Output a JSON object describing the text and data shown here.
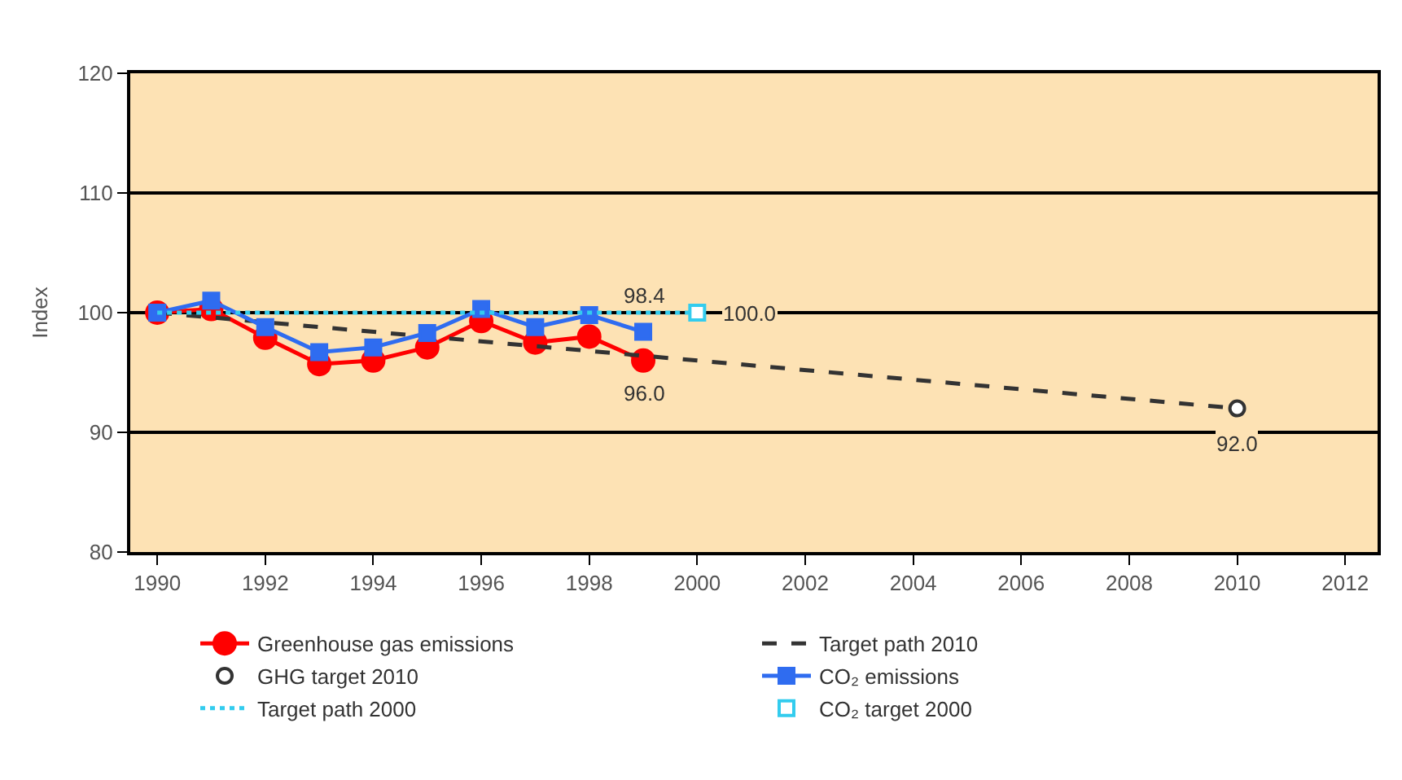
{
  "chart_data": {
    "type": "line",
    "ylabel": "Index",
    "xlim": [
      1989.5,
      2012.6
    ],
    "xticks": [
      1990,
      1992,
      1994,
      1996,
      1998,
      2000,
      2002,
      2004,
      2006,
      2008,
      2010,
      2012
    ],
    "ylim": [
      80,
      120
    ],
    "yticks": [
      80,
      90,
      100,
      110,
      120
    ],
    "grid": "y",
    "legend": "bottom",
    "series": [
      {
        "name": "Greenhouse gas emissions",
        "color": "#ff0000",
        "marker": "circle",
        "line_style": "solid",
        "x": [
          1990,
          1991,
          1992,
          1993,
          1994,
          1995,
          1996,
          1997,
          1998,
          1999
        ],
        "values": [
          100,
          100.3,
          97.9,
          95.7,
          96.0,
          97.1,
          99.3,
          97.5,
          98.0,
          96.0
        ],
        "value_labels": [
          null,
          null,
          null,
          null,
          null,
          null,
          null,
          null,
          null,
          "96.0"
        ]
      },
      {
        "name": "Target path 2010",
        "color": "#333333",
        "marker": "none",
        "line_style": "dashed",
        "x": [
          1990,
          2010
        ],
        "values": [
          100,
          92.0
        ]
      },
      {
        "name": "GHG target 2010",
        "type": "scatter",
        "color": "#333333",
        "marker": "circle",
        "x": [
          2010
        ],
        "values": [
          92.0
        ],
        "value_labels": [
          "92.0"
        ]
      },
      {
        "name": "CO₂ emissions",
        "color": "#2f6cf0",
        "marker": "square",
        "line_style": "solid",
        "x": [
          1990,
          1991,
          1992,
          1993,
          1994,
          1995,
          1996,
          1997,
          1998,
          1999
        ],
        "values": [
          100,
          101.0,
          98.8,
          96.7,
          97.1,
          98.3,
          100.3,
          98.8,
          99.8,
          98.4
        ],
        "value_labels": [
          null,
          null,
          null,
          null,
          null,
          null,
          null,
          null,
          null,
          "98.4"
        ]
      },
      {
        "name": "Target path 2000",
        "color": "#33ccee",
        "marker": "none",
        "line_style": "dotted",
        "x": [
          1990,
          2000
        ],
        "values": [
          100,
          100
        ]
      },
      {
        "name": "CO₂ target 2000",
        "type": "scatter",
        "color": "#33ccee",
        "marker": "square",
        "x": [
          2000
        ],
        "values": [
          100.0
        ],
        "value_labels": [
          "100.0"
        ]
      }
    ]
  }
}
